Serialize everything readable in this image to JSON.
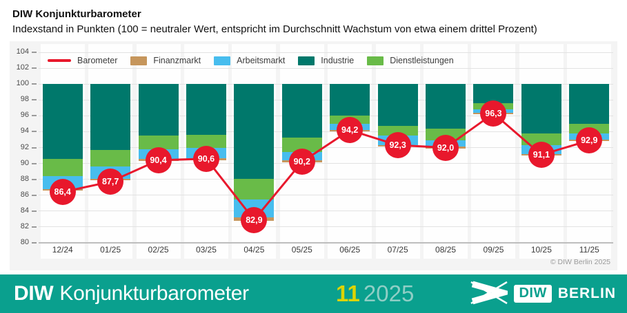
{
  "header": {
    "title": "DIW Konjunkturbarometer",
    "subtitle": "Indexstand in Punkten (100 = neutraler Wert, entspricht im Durchschnitt Wachstum von etwa einem drittel Prozent)"
  },
  "chart_data": {
    "type": "bar",
    "subtype": "stacked deviation bars hanging from baseline 100 with line overlay and labeled point markers",
    "title": "DIW Konjunkturbarometer",
    "xlabel": "",
    "ylabel": "Indexstand in Punkten",
    "ylim": [
      80,
      104
    ],
    "ytick_step": 2,
    "baseline": 100,
    "grid": true,
    "legend_position": "top-left inside plot",
    "categories": [
      "12/24",
      "01/25",
      "02/25",
      "03/25",
      "04/25",
      "05/25",
      "06/25",
      "07/25",
      "08/25",
      "09/25",
      "10/25",
      "11/25"
    ],
    "legend": [
      {
        "label": "Barometer",
        "swatch": "line",
        "color": "#e8182c"
      },
      {
        "label": "Finanzmarkt",
        "swatch": "rect",
        "color": "#c6965c"
      },
      {
        "label": "Arbeitsmarkt",
        "swatch": "rect",
        "color": "#47bdee"
      },
      {
        "label": "Industrie",
        "swatch": "rect",
        "color": "#00786b"
      },
      {
        "label": "Dienstleistungen",
        "swatch": "rect",
        "color": "#69bb48"
      }
    ],
    "series": [
      {
        "name": "Barometer",
        "type": "line",
        "values": [
          86.4,
          87.7,
          90.4,
          90.6,
          82.9,
          90.2,
          94.2,
          92.3,
          92.0,
          96.3,
          91.1,
          92.9
        ],
        "labels": [
          "86,4",
          "87,7",
          "90,4",
          "90,6",
          "82,9",
          "90,2",
          "94,2",
          "92,3",
          "92,0",
          "96,3",
          "91,1",
          "92,9"
        ]
      }
    ],
    "bars": {
      "stack_keys": [
        "Finanzmarkt",
        "Arbeitsmarkt",
        "Dienstleistungen",
        "Industrie"
      ],
      "note": "stack arrays are value boundaries bottom-to-top: [bar bottom, Finanzmarkt top, Arbeitsmarkt top, Dienstleistungen top, Industrie top=100]; values estimated from gridlines",
      "points": [
        {
          "category": "12/24",
          "stack": [
            86.6,
            86.8,
            88.4,
            90.6,
            100
          ]
        },
        {
          "category": "01/25",
          "stack": [
            87.9,
            88.1,
            89.6,
            91.7,
            100
          ]
        },
        {
          "category": "02/25",
          "stack": [
            90.3,
            90.6,
            91.8,
            93.5,
            100
          ]
        },
        {
          "category": "03/25",
          "stack": [
            90.4,
            90.7,
            92.0,
            93.6,
            100
          ]
        },
        {
          "category": "04/25",
          "stack": [
            82.8,
            83.2,
            85.5,
            88.1,
            100
          ]
        },
        {
          "category": "05/25",
          "stack": [
            90.1,
            90.4,
            91.4,
            93.3,
            100
          ]
        },
        {
          "category": "06/25",
          "stack": [
            94.0,
            94.2,
            95.0,
            96.0,
            100
          ]
        },
        {
          "category": "07/25",
          "stack": [
            92.1,
            92.3,
            93.5,
            94.7,
            100
          ]
        },
        {
          "category": "08/25",
          "stack": [
            91.9,
            92.1,
            92.9,
            94.4,
            100
          ]
        },
        {
          "category": "09/25",
          "stack": [
            96.2,
            96.4,
            96.8,
            97.6,
            100
          ]
        },
        {
          "category": "10/25",
          "stack": [
            91.0,
            91.2,
            92.3,
            93.8,
            100
          ]
        },
        {
          "category": "11/25",
          "stack": [
            92.8,
            93.0,
            93.8,
            95.0,
            100
          ]
        }
      ]
    }
  },
  "panel": {
    "copyright": "© DIW Berlin 2025"
  },
  "footer": {
    "brand_bold": "DIW",
    "brand_rest": "Konjunkturbarometer",
    "issue_number": "11",
    "issue_year": "2025",
    "logo_diw": "DIW",
    "logo_berlin": "BERLIN"
  },
  "colors": {
    "accent_red": "#e8182c",
    "footer_teal": "#0aa08e",
    "issue_yellow": "#ddd400",
    "issue_year_pale": "#8fcec5",
    "panel_background": "#f4f4f4",
    "column_band": "#fefefe",
    "gridline": "#e2e2e2"
  }
}
